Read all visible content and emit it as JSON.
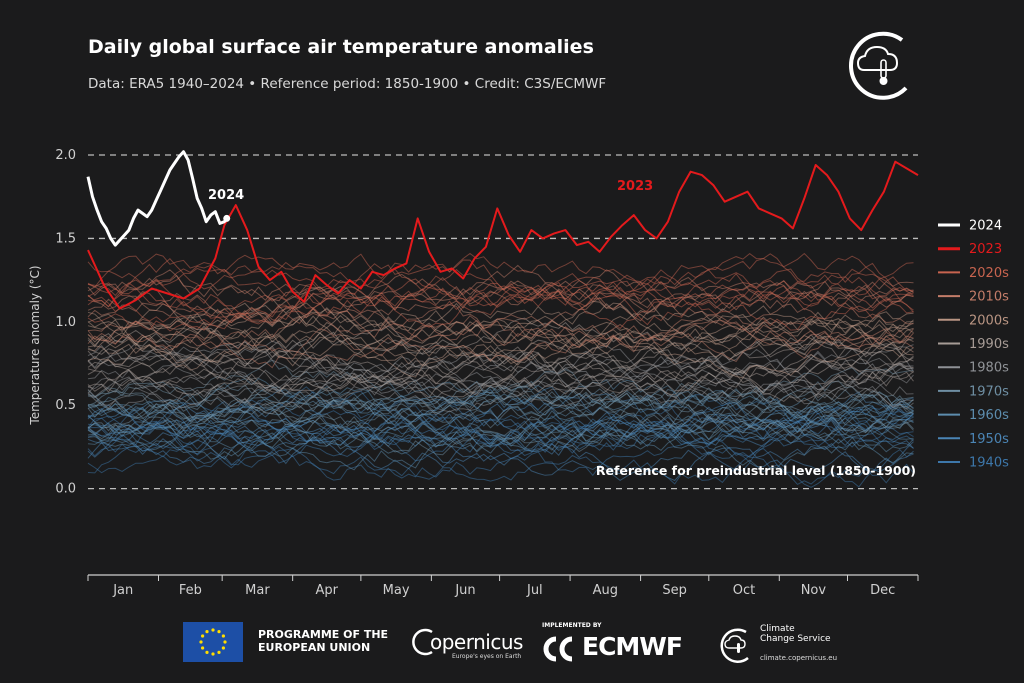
{
  "header": {
    "title": "Daily global surface air temperature anomalies",
    "subtitle": "Data: ERA5 1940–2024 • Reference period: 1850-1900 • Credit: C3S/ECMWF"
  },
  "colors": {
    "background": "#1b1b1c",
    "y2024": "#ffffff",
    "y2023": "#e41a1c",
    "d2020s": "#c8644f",
    "d2010s": "#c47d69",
    "d2000s": "#b99583",
    "d1990s": "#a79c96",
    "d1980s": "#8f9296",
    "d1970s": "#6f8fa3",
    "d1960s": "#5d8dae",
    "d1950s": "#4b85b5",
    "d1940s": "#3d77aa"
  },
  "chart_data": {
    "type": "line",
    "title": "Daily global surface air temperature anomalies",
    "xlabel": "",
    "ylabel": "Temperature anomaly (°C)",
    "x_domain": "day of year (1–366)",
    "xlim": [
      1,
      366
    ],
    "ylim": [
      -0.5,
      2.3
    ],
    "months": [
      "Jan",
      "Feb",
      "Mar",
      "Apr",
      "May",
      "Jun",
      "Jul",
      "Aug",
      "Sep",
      "Oct",
      "Nov",
      "Dec"
    ],
    "yticks": [
      0.0,
      0.5,
      1.0,
      1.5,
      2.0
    ],
    "ytick_labels": [
      "0.0",
      "0.5",
      "1.0",
      "1.5",
      "2.0"
    ],
    "reference_lines": [
      0.0,
      1.5,
      2.0
    ],
    "reference_label": "Reference for preindustrial level (1850-1900)",
    "grid": false,
    "legend_position": "right",
    "legend": [
      "2024",
      "2023",
      "2020s",
      "2010s",
      "2000s",
      "1990s",
      "1980s",
      "1970s",
      "1960s",
      "1950s",
      "1940s"
    ],
    "series": [
      {
        "name": "2024",
        "annotation": "2024",
        "x": [
          1,
          3,
          5,
          7,
          9,
          11,
          13,
          15,
          17,
          19,
          21,
          23,
          25,
          27,
          29,
          31,
          33,
          35,
          37,
          39,
          41,
          43,
          45,
          47,
          49,
          51,
          53,
          55,
          57,
          59,
          61,
          62
        ],
        "values": [
          1.87,
          1.75,
          1.67,
          1.6,
          1.56,
          1.5,
          1.46,
          1.49,
          1.52,
          1.55,
          1.62,
          1.67,
          1.65,
          1.63,
          1.67,
          1.73,
          1.79,
          1.85,
          1.91,
          1.95,
          1.99,
          2.02,
          1.97,
          1.86,
          1.74,
          1.68,
          1.6,
          1.64,
          1.66,
          1.59,
          1.6,
          1.62
        ]
      },
      {
        "name": "2023",
        "annotation": "2023",
        "x": [
          1,
          8,
          15,
          22,
          29,
          36,
          43,
          50,
          57,
          61,
          66,
          71,
          76,
          81,
          86,
          91,
          96,
          101,
          106,
          111,
          116,
          121,
          126,
          131,
          136,
          141,
          146,
          151,
          156,
          161,
          166,
          171,
          176,
          181,
          186,
          191,
          196,
          201,
          206,
          211,
          216,
          221,
          226,
          231,
          236,
          241,
          246,
          251,
          256,
          261,
          266,
          271,
          276,
          281,
          286,
          291,
          296,
          301,
          306,
          311,
          316,
          321,
          326,
          331,
          336,
          341,
          346,
          351,
          356,
          361,
          366
        ],
        "values": [
          1.43,
          1.22,
          1.08,
          1.13,
          1.2,
          1.17,
          1.14,
          1.2,
          1.38,
          1.58,
          1.7,
          1.55,
          1.33,
          1.25,
          1.3,
          1.18,
          1.12,
          1.28,
          1.22,
          1.17,
          1.25,
          1.2,
          1.3,
          1.28,
          1.32,
          1.35,
          1.62,
          1.42,
          1.3,
          1.32,
          1.26,
          1.38,
          1.45,
          1.68,
          1.52,
          1.42,
          1.55,
          1.5,
          1.53,
          1.55,
          1.46,
          1.48,
          1.42,
          1.51,
          1.58,
          1.64,
          1.55,
          1.5,
          1.6,
          1.78,
          1.9,
          1.88,
          1.82,
          1.72,
          1.75,
          1.78,
          1.68,
          1.65,
          1.62,
          1.56,
          1.74,
          1.94,
          1.88,
          1.78,
          1.62,
          1.55,
          1.67,
          1.78,
          1.96,
          1.92,
          1.88
        ]
      }
    ],
    "decade_series": [
      {
        "name": "2020s",
        "level": 1.2
      },
      {
        "name": "2010s",
        "level": 1.05
      },
      {
        "name": "2000s",
        "level": 0.92
      },
      {
        "name": "1990s",
        "level": 0.78
      },
      {
        "name": "1980s",
        "level": 0.62
      },
      {
        "name": "1970s",
        "level": 0.45
      },
      {
        "name": "1960s",
        "level": 0.38
      },
      {
        "name": "1950s",
        "level": 0.3
      },
      {
        "name": "1940s",
        "level": 0.27
      }
    ]
  },
  "footer": {
    "eu_line1": "PROGRAMME OF THE",
    "eu_line2": "EUROPEAN UNION",
    "copernicus": "opernicus",
    "copernicus_tagline": "Europe's eyes on Earth",
    "implemented_by": "IMPLEMENTED BY",
    "ecmwf": "ECMWF",
    "c3s_line1": "Climate",
    "c3s_line2": "Change Service",
    "c3s_url": "climate.copernicus.eu"
  },
  "icons": {
    "c3s_logo": "cloud-thermometer-icon",
    "eu_flag": "eu-flag-icon",
    "copernicus_logo": "copernicus-icon",
    "ecmwf_logo": "ecmwf-icon"
  }
}
